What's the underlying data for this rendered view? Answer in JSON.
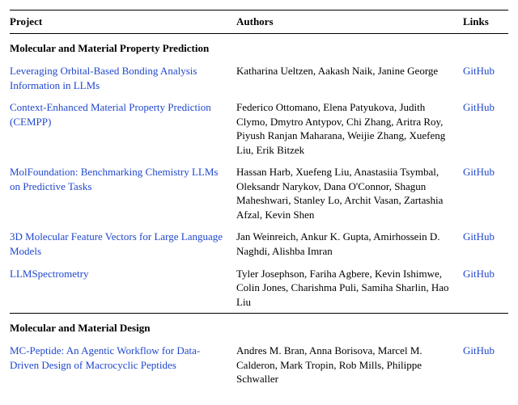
{
  "header": {
    "project": "Project",
    "authors": "Authors",
    "links": "Links"
  },
  "link_color": "#2047cc",
  "text_color": "#000000",
  "background_color": "#ffffff",
  "font_family": "Times New Roman",
  "font_size_pt": 10,
  "sections": [
    {
      "title": "Molecular and Material Property Prediction",
      "rows": [
        {
          "project": "Leveraging Orbital-Based Bonding Analysis Information in LLMs",
          "authors": "Katharina Ueltzen, Aakash Naik, Janine George",
          "link": "GitHub"
        },
        {
          "project": "Context-Enhanced Material Property Prediction (CEMPP)",
          "authors": "Federico Ottomano, Elena Patyukova, Judith Clymo, Dmytro Antypov, Chi Zhang, Aritra Roy, Piyush Ranjan Maharana, Weijie Zhang, Xuefeng Liu, Erik Bitzek",
          "link": "GitHub"
        },
        {
          "project": "MolFoundation: Benchmarking Chemistry LLMs on Predictive Tasks",
          "authors": "Hassan Harb, Xuefeng Liu, Anastasiia Tsymbal, Oleksandr Narykov, Dana O'Connor, Shagun Maheshwari, Stanley Lo, Archit Vasan, Zartashia Afzal, Kevin Shen",
          "link": "GitHub"
        },
        {
          "project": "3D Molecular Feature Vectors for Large Language Models",
          "authors": "Jan Weinreich, Ankur K. Gupta, Amirhossein D. Naghdi, Alishba Imran",
          "link": "GitHub"
        },
        {
          "project": "LLMSpectrometry",
          "authors": "Tyler Josephson, Fariha Agbere, Kevin Ishimwe, Colin Jones, Charishma Puli, Samiha Sharlin, Hao Liu",
          "link": "GitHub"
        }
      ]
    },
    {
      "title": "Molecular and Material Design",
      "rows": [
        {
          "project": "MC-Peptide: An Agentic Workflow for Data-Driven Design of Macrocyclic Peptides",
          "authors": "Andres M. Bran, Anna Borisova, Marcel M. Calderon, Mark Tropin, Rob Mills, Philippe Schwaller",
          "link": "GitHub"
        }
      ]
    }
  ]
}
